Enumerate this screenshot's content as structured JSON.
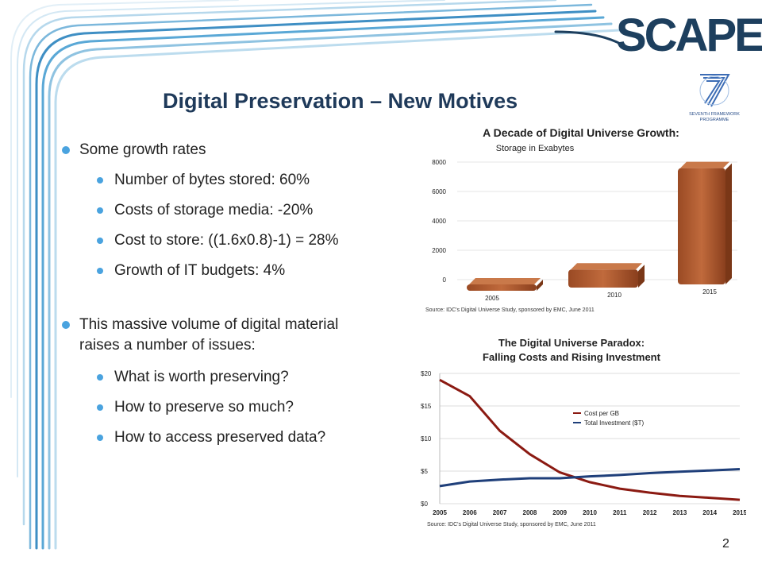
{
  "logo": "SCAPE",
  "programme_logo": "SEVENTH FRAMEWORK PROGRAMME",
  "title": "Digital Preservation – New Motives",
  "bullets": {
    "growth": {
      "label": "Some growth rates",
      "items": [
        "Number of bytes stored: 60%",
        "Costs of storage media: -20%",
        "Cost to store: ((1.6x0.8)-1) = 28%",
        "Growth of IT budgets: 4%"
      ]
    },
    "issues": {
      "label": "This massive volume of digital material raises a number of issues:",
      "items": [
        "What is worth preserving?",
        "How to preserve so much?",
        "How to access preserved data?"
      ]
    }
  },
  "page_number": "2",
  "chart_data": [
    {
      "type": "bar",
      "title": "A Decade of Digital Universe Growth:",
      "subtitle": "Storage in Exabytes",
      "source": "Source: IDC's Digital Universe Study, sponsored by EMC, June 2011",
      "categories": [
        "2005",
        "2010",
        "2015"
      ],
      "values": [
        130,
        1227,
        7910
      ],
      "yticks": [
        0,
        2000,
        4000,
        6000,
        8000
      ],
      "ylim": [
        0,
        8000
      ],
      "bar_color": "#a8562f"
    },
    {
      "type": "line",
      "title": "The Digital Universe Paradox:",
      "subtitle": "Falling Costs and Rising Investment",
      "source": "Source: IDC's Digital Universe Study, sponsored by EMC, June 2011",
      "x": [
        "2005",
        "2006",
        "2007",
        "2008",
        "2009",
        "2010",
        "2011",
        "2012",
        "2013",
        "2014",
        "2015"
      ],
      "yticks": [
        "$0",
        "$5",
        "$10",
        "$15",
        "$20"
      ],
      "ylim": [
        0,
        20
      ],
      "series": [
        {
          "name": "Cost per GB",
          "color": "#8b1a12",
          "values": [
            19,
            16.5,
            11.2,
            7.6,
            4.8,
            3.3,
            2.3,
            1.7,
            1.2,
            0.9,
            0.6
          ]
        },
        {
          "name": "Total Investment ($T)",
          "color": "#1f3f7a",
          "values": [
            2.7,
            3.4,
            3.7,
            3.9,
            3.9,
            4.2,
            4.4,
            4.7,
            4.9,
            5.1,
            5.3
          ]
        }
      ]
    }
  ]
}
